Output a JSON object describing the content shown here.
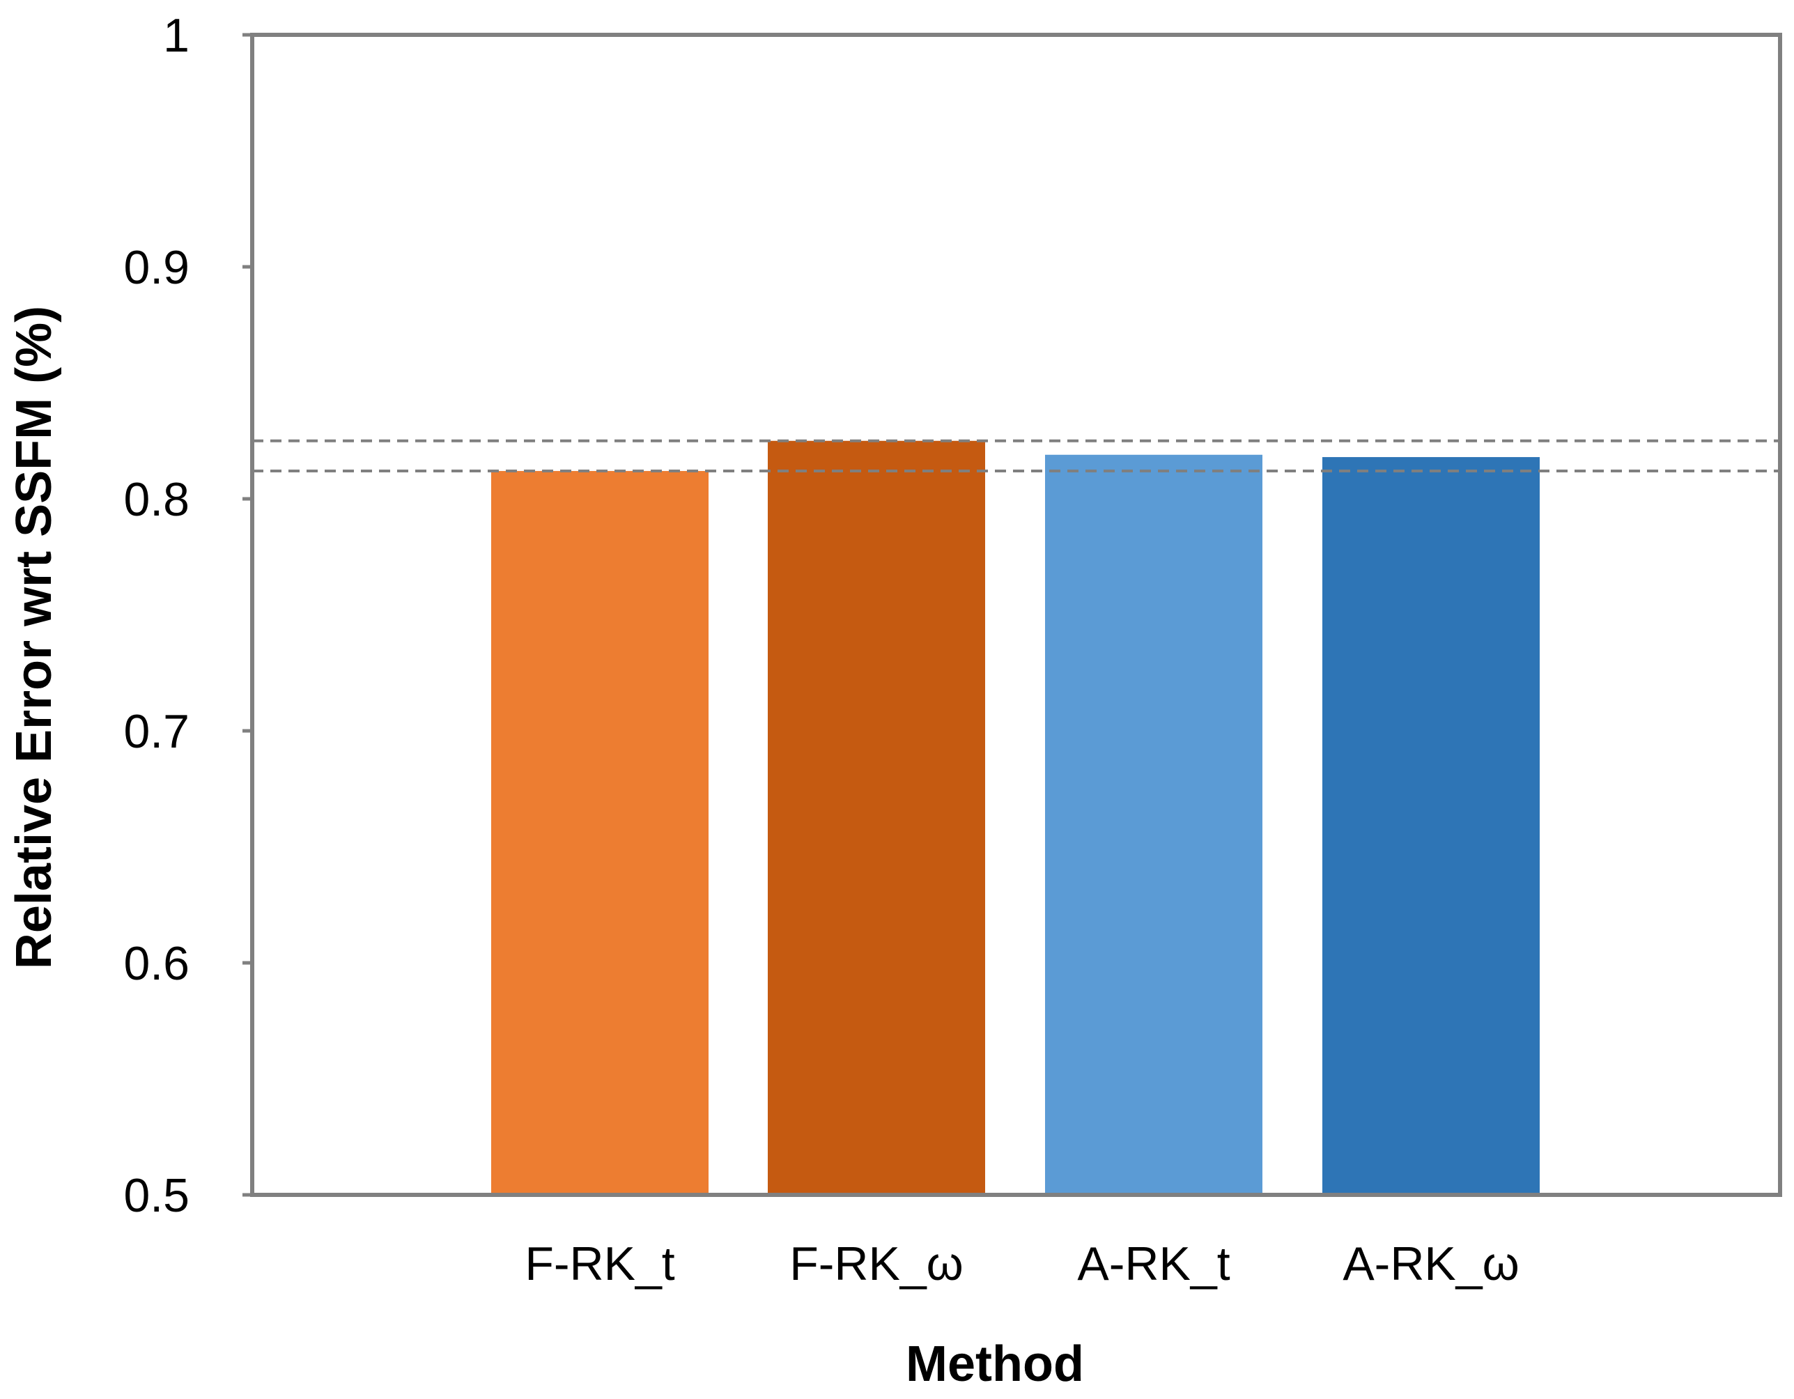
{
  "chart_data": {
    "type": "bar",
    "title": "",
    "xlabel": "Method",
    "ylabel": "Relative Error wrt SSFM (%)",
    "categories": [
      "F-RK_t",
      "F-RK_ω",
      "A-RK_t",
      "A-RK_ω"
    ],
    "values": [
      0.812,
      0.825,
      0.819,
      0.818
    ],
    "colors": [
      "#ED7D31",
      "#C55A11",
      "#5B9BD5",
      "#2E75B6"
    ],
    "ylim": [
      0.5,
      1
    ],
    "yticks": [
      0.5,
      0.6,
      0.7,
      0.8,
      0.9,
      1
    ],
    "ytick_labels": [
      "0.5",
      "0.6",
      "0.7",
      "0.8",
      "0.9",
      "1"
    ],
    "reference_lines": [
      0.825,
      0.812
    ],
    "grid": false,
    "legend": "none",
    "frame_color": "#808080",
    "reference_line_color": "#7F7F7F"
  }
}
